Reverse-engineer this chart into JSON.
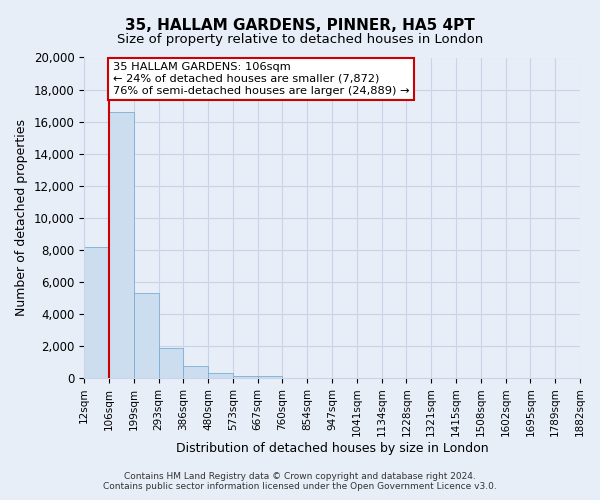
{
  "title": "35, HALLAM GARDENS, PINNER, HA5 4PT",
  "subtitle": "Size of property relative to detached houses in London",
  "xlabel": "Distribution of detached houses by size in London",
  "ylabel": "Number of detached properties",
  "bin_labels": [
    "12sqm",
    "106sqm",
    "199sqm",
    "293sqm",
    "386sqm",
    "480sqm",
    "573sqm",
    "667sqm",
    "760sqm",
    "854sqm",
    "947sqm",
    "1041sqm",
    "1134sqm",
    "1228sqm",
    "1321sqm",
    "1415sqm",
    "1508sqm",
    "1602sqm",
    "1695sqm",
    "1789sqm",
    "1882sqm"
  ],
  "bar_heights": [
    8200,
    16600,
    5300,
    1850,
    750,
    290,
    140,
    130,
    0,
    0,
    0,
    0,
    0,
    0,
    0,
    0,
    0,
    0,
    0,
    0
  ],
  "bar_color": "#ccddf0",
  "bar_edge_color": "#7aadd4",
  "property_line_color": "#cc0000",
  "ylim": [
    0,
    20000
  ],
  "yticks": [
    0,
    2000,
    4000,
    6000,
    8000,
    10000,
    12000,
    14000,
    16000,
    18000,
    20000
  ],
  "annotation_line1": "35 HALLAM GARDENS: 106sqm",
  "annotation_line2": "← 24% of detached houses are smaller (7,872)",
  "annotation_line3": "76% of semi-detached houses are larger (24,889) →",
  "annotation_box_color": "#ffffff",
  "annotation_box_edge": "#cc0000",
  "footer_line1": "Contains HM Land Registry data © Crown copyright and database right 2024.",
  "footer_line2": "Contains public sector information licensed under the Open Government Licence v3.0.",
  "background_color": "#e8eef8",
  "plot_background": "#e8eef8",
  "grid_color": "#c8d4e8",
  "title_fontsize": 11,
  "subtitle_fontsize": 9.5
}
